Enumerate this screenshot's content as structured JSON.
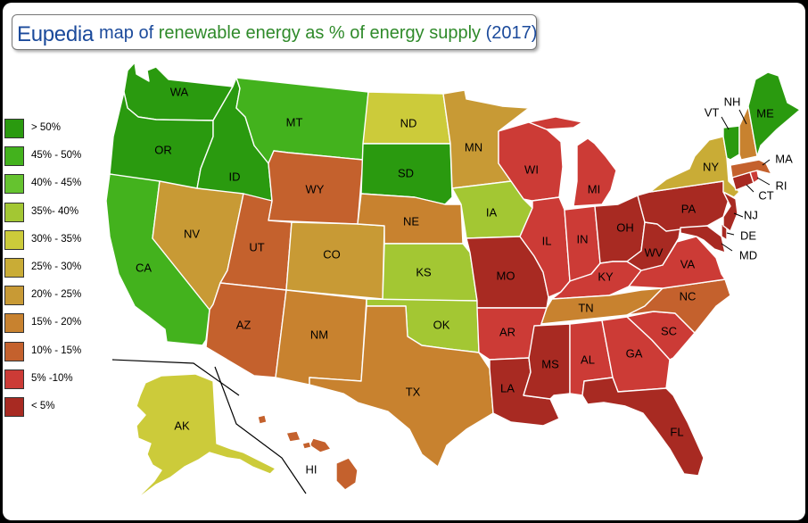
{
  "header": {
    "brand": "Eupedia",
    "title_part1": "map of ",
    "title_part2": "renewable energy as % of energy supply",
    "title_part3": " (2017)"
  },
  "colors": {
    "gt50": "#2a9a0f",
    "45_50": "#43b21d",
    "40_45": "#65c32f",
    "35_40": "#a3c733",
    "30_35": "#cccb3a",
    "25_30": "#c9ac36",
    "20_25": "#c89a35",
    "15_20": "#c8822f",
    "10_15": "#c4612d",
    "5_10": "#cc3b36",
    "lt5": "#a82a22"
  },
  "legend": [
    {
      "label": "> 50%",
      "color": "#2a9a0f"
    },
    {
      "label": "45% - 50%",
      "color": "#43b21d"
    },
    {
      "label": "40% - 45%",
      "color": "#65c32f"
    },
    {
      "label": "35%- 40%",
      "color": "#a3c733"
    },
    {
      "label": "30% - 35%",
      "color": "#cccb3a"
    },
    {
      "label": "25% - 30%",
      "color": "#c9ac36"
    },
    {
      "label": "20% - 25%",
      "color": "#c89a35"
    },
    {
      "label": "15% - 20%",
      "color": "#c8822f"
    },
    {
      "label": "10% - 15%",
      "color": "#c4612d"
    },
    {
      "label": "5% -10%",
      "color": "#cc3b36"
    },
    {
      "label": "< 5%",
      "color": "#a82a22"
    }
  ],
  "states": {
    "WA": {
      "label": "WA",
      "color": "#2a9a0f"
    },
    "OR": {
      "label": "OR",
      "color": "#2a9a0f"
    },
    "CA": {
      "label": "CA",
      "color": "#43b21d"
    },
    "ID": {
      "label": "ID",
      "color": "#2a9a0f"
    },
    "NV": {
      "label": "NV",
      "color": "#c89a35"
    },
    "MT": {
      "label": "MT",
      "color": "#43b21d"
    },
    "WY": {
      "label": "WY",
      "color": "#c4612d"
    },
    "UT": {
      "label": "UT",
      "color": "#c4612d"
    },
    "AZ": {
      "label": "AZ",
      "color": "#c4612d"
    },
    "CO": {
      "label": "CO",
      "color": "#c89a35"
    },
    "NM": {
      "label": "NM",
      "color": "#c8822f"
    },
    "ND": {
      "label": "ND",
      "color": "#cccb3a"
    },
    "SD": {
      "label": "SD",
      "color": "#2a9a0f"
    },
    "NE": {
      "label": "NE",
      "color": "#c8822f"
    },
    "KS": {
      "label": "KS",
      "color": "#a3c733"
    },
    "OK": {
      "label": "OK",
      "color": "#a3c733"
    },
    "TX": {
      "label": "TX",
      "color": "#c8822f"
    },
    "MN": {
      "label": "MN",
      "color": "#c89a35"
    },
    "IA": {
      "label": "IA",
      "color": "#a3c733"
    },
    "MO": {
      "label": "MO",
      "color": "#a82a22"
    },
    "AR": {
      "label": "AR",
      "color": "#cc3b36"
    },
    "LA": {
      "label": "LA",
      "color": "#a82a22"
    },
    "WI": {
      "label": "WI",
      "color": "#cc3b36"
    },
    "IL": {
      "label": "IL",
      "color": "#cc3b36"
    },
    "MI": {
      "label": "MI",
      "color": "#cc3b36"
    },
    "IN": {
      "label": "IN",
      "color": "#cc3b36"
    },
    "OH": {
      "label": "OH",
      "color": "#a82a22"
    },
    "KY": {
      "label": "KY",
      "color": "#cc3b36"
    },
    "TN": {
      "label": "TN",
      "color": "#c8822f"
    },
    "MS": {
      "label": "MS",
      "color": "#a82a22"
    },
    "AL": {
      "label": "AL",
      "color": "#cc3b36"
    },
    "GA": {
      "label": "GA",
      "color": "#cc3b36"
    },
    "FL": {
      "label": "FL",
      "color": "#a82a22"
    },
    "SC": {
      "label": "SC",
      "color": "#cc3b36"
    },
    "NC": {
      "label": "NC",
      "color": "#c4612d"
    },
    "VA": {
      "label": "VA",
      "color": "#cc3b36"
    },
    "WV": {
      "label": "WV",
      "color": "#a82a22"
    },
    "PA": {
      "label": "PA",
      "color": "#a82a22"
    },
    "NY": {
      "label": "NY",
      "color": "#c9ac36"
    },
    "VT": {
      "label": "VT",
      "color": "#2a9a0f"
    },
    "NH": {
      "label": "NH",
      "color": "#c8822f"
    },
    "ME": {
      "label": "ME",
      "color": "#2a9a0f"
    },
    "MA": {
      "label": "MA",
      "color": "#c4612d"
    },
    "RI": {
      "label": "RI",
      "color": "#cc3b36"
    },
    "CT": {
      "label": "CT",
      "color": "#a82a22"
    },
    "NJ": {
      "label": "NJ",
      "color": "#a82a22"
    },
    "DE": {
      "label": "DE",
      "color": "#a82a22"
    },
    "MD": {
      "label": "MD",
      "color": "#a82a22"
    },
    "AK": {
      "label": "AK",
      "color": "#cccb3a"
    },
    "HI": {
      "label": "HI",
      "color": "#c4612d"
    }
  }
}
